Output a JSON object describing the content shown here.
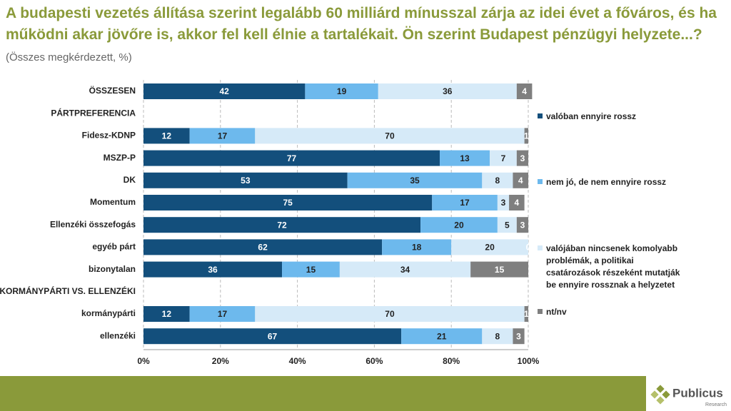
{
  "chart_data": {
    "type": "stacked-bar-horizontal",
    "title": "A budapesti vezetés állítása szerint legalább 60 milliárd mínusszal zárja az idei évet a főváros, és ha működni akar jövőre is, akkor fel kell élnie a tartalékait. Ön szerint Budapest pénzügyi helyzete...?",
    "subtitle": "(Összes megkérdezett, %)",
    "categories": [
      "ÖSSZESEN",
      "PÁRTPREFERENCIA",
      "Fidesz-KDNP",
      "MSZP-P",
      "DK",
      "Momentum",
      "Ellenzéki összefogás",
      "egyéb párt",
      "bizonytalan",
      "KORMÁNYPÁRTI VS. ELLENZÉKI",
      "kormánypárti",
      "ellenzéki"
    ],
    "series": [
      {
        "name": "valóban ennyire rossz",
        "color": "#134f7c",
        "values": [
          42,
          null,
          12,
          77,
          53,
          75,
          72,
          62,
          36,
          null,
          12,
          67
        ]
      },
      {
        "name": "nem jó, de nem ennyire rossz",
        "color": "#6db9ed",
        "values": [
          19,
          null,
          17,
          13,
          35,
          17,
          20,
          18,
          15,
          null,
          17,
          21
        ]
      },
      {
        "name": "valójában nincsenek komolyabb problémák, a politikai csatározások részeként mutatják be ennyire rossznak a helyzetet",
        "color": "#d6eaf8",
        "values": [
          36,
          null,
          70,
          7,
          8,
          3,
          5,
          20,
          34,
          null,
          70,
          8
        ]
      },
      {
        "name": "nt/nv",
        "color": "#7f7f7f",
        "values": [
          4,
          null,
          1,
          3,
          4,
          4,
          3,
          0,
          15,
          null,
          1,
          3
        ]
      }
    ],
    "xlim": [
      0,
      100
    ],
    "xticks": [
      {
        "value": 0,
        "label": "0%"
      },
      {
        "value": 20,
        "label": "20%"
      },
      {
        "value": 40,
        "label": "40%"
      },
      {
        "value": 60,
        "label": "60%"
      },
      {
        "value": 80,
        "label": "80%"
      },
      {
        "value": 100,
        "label": "100%"
      }
    ],
    "grid": true
  },
  "logo": {
    "name": "Publicus",
    "sub": "Research"
  }
}
